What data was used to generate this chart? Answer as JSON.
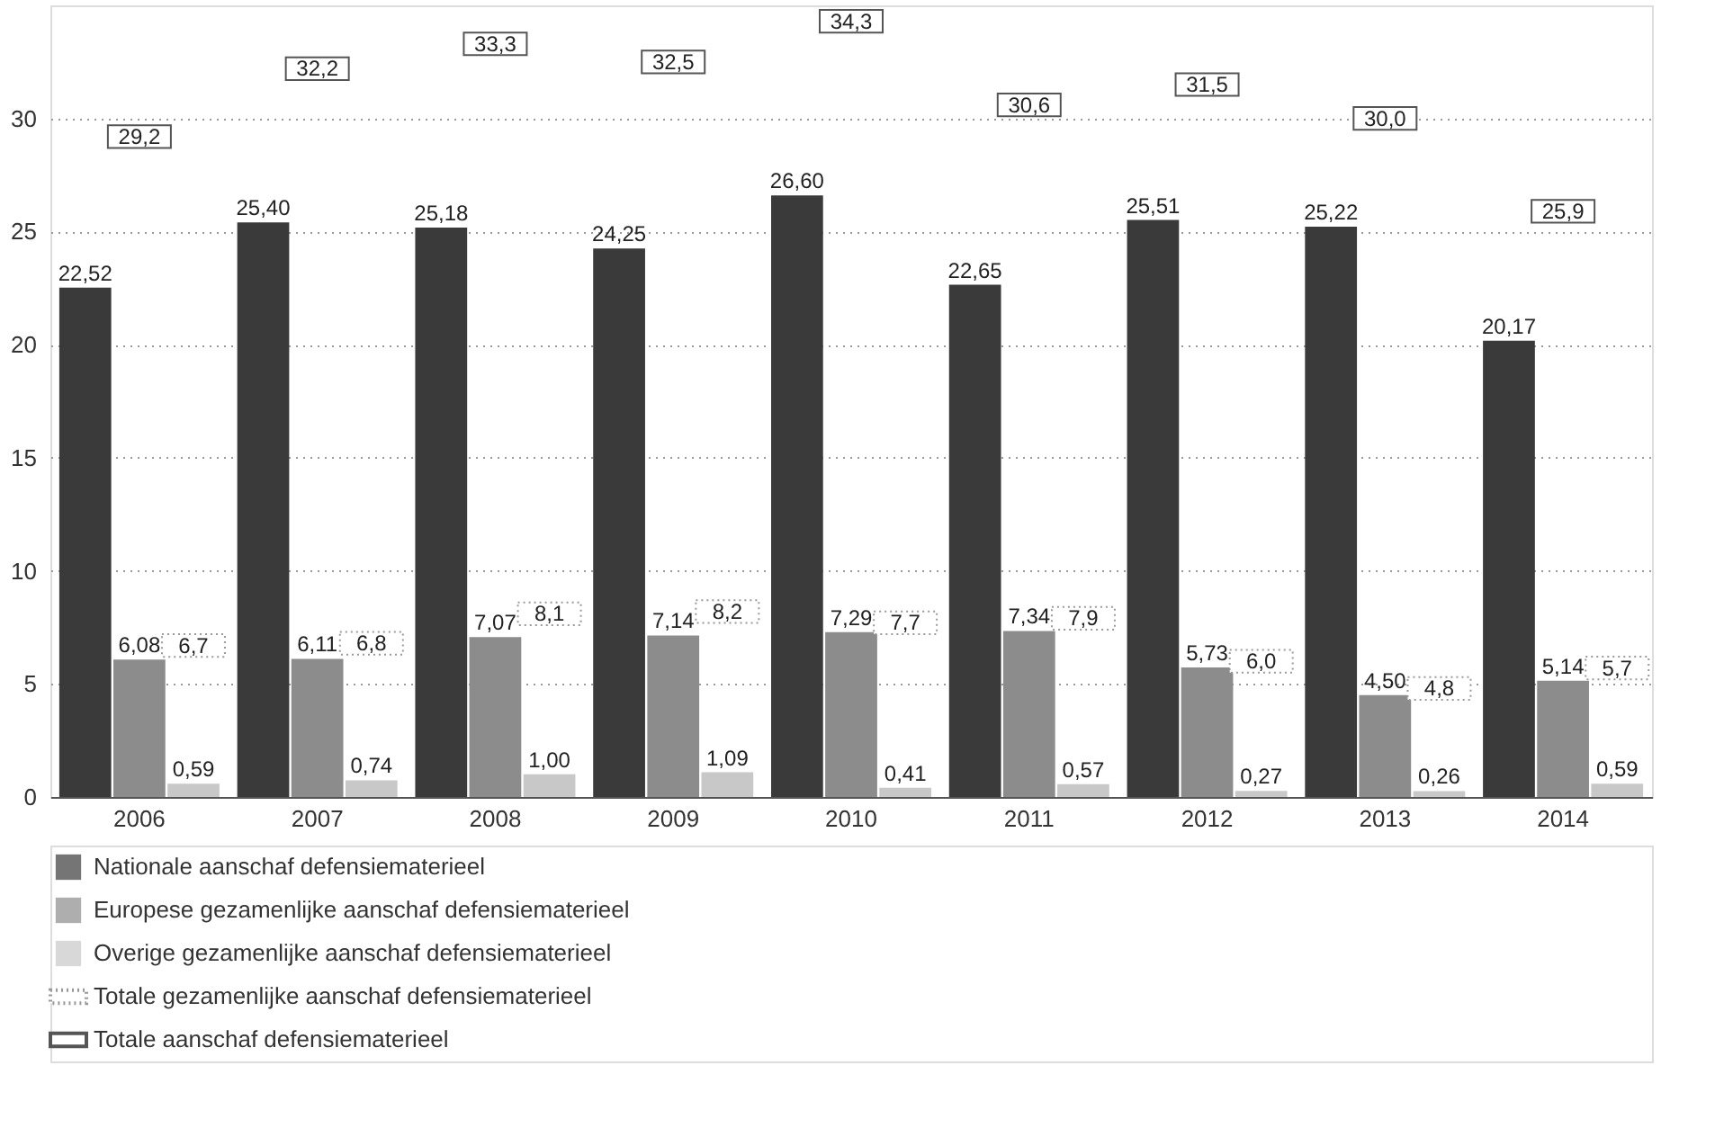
{
  "chart_data": {
    "type": "bar",
    "categories": [
      "2006",
      "2007",
      "2008",
      "2009",
      "2010",
      "2011",
      "2012",
      "2013",
      "2014"
    ],
    "ylim": [
      0,
      35
    ],
    "yticks": [
      0,
      5,
      10,
      15,
      20,
      25,
      30
    ],
    "grid": "y",
    "legend": "bottom",
    "series": [
      {
        "name": "Nationale aanschaf defensiematerieel",
        "color": "#3a3a3a",
        "values": [
          22.52,
          25.4,
          25.18,
          24.25,
          26.6,
          22.65,
          25.51,
          25.22,
          20.17
        ],
        "value_labels": [
          "22,52",
          "25,40",
          "25,18",
          "24,25",
          "26,60",
          "22,65",
          "25,51",
          "25,22",
          "20,17"
        ]
      },
      {
        "name": "Europese gezamenlijke aanschaf defensiematerieel",
        "color": "#8c8c8c",
        "values": [
          6.08,
          6.11,
          7.07,
          7.14,
          7.29,
          7.34,
          5.73,
          4.5,
          5.14
        ],
        "value_labels": [
          "6,08",
          "6,11",
          "7,07",
          "7,14",
          "7,29",
          "7,34",
          "5,73",
          "4,50",
          "5,14"
        ]
      },
      {
        "name": "Overige gezamenlijke aanschaf defensiematerieel",
        "color": "#c8c8c8",
        "values": [
          0.59,
          0.74,
          1.0,
          1.09,
          0.41,
          0.57,
          0.27,
          0.26,
          0.59
        ],
        "value_labels": [
          "0,59",
          "0,74",
          "1,00",
          "1,09",
          "0,41",
          "0,57",
          "0,27",
          "0,26",
          "0,59"
        ]
      },
      {
        "name": "Totale gezamenlijke aanschaf defensiematerieel",
        "type": "scatter",
        "line_style": "dotted",
        "color": "#999999",
        "values": [
          6.7,
          6.8,
          8.1,
          8.2,
          7.7,
          7.9,
          6.0,
          4.8,
          5.7
        ],
        "value_labels": [
          "6,7",
          "6,8",
          "8,1",
          "8,2",
          "7,7",
          "7,9",
          "6,0",
          "4,8",
          "5,7"
        ]
      },
      {
        "name": "Totale aanschaf defensiematerieel",
        "type": "scatter",
        "line_style": "solid",
        "color": "#555555",
        "values": [
          29.2,
          32.2,
          33.3,
          32.5,
          34.3,
          30.6,
          31.5,
          30.0,
          25.9
        ],
        "value_labels": [
          "29,2",
          "32,2",
          "33,3",
          "32,5",
          "34,3",
          "30,6",
          "31,5",
          "30,0",
          "25,9"
        ]
      }
    ]
  }
}
